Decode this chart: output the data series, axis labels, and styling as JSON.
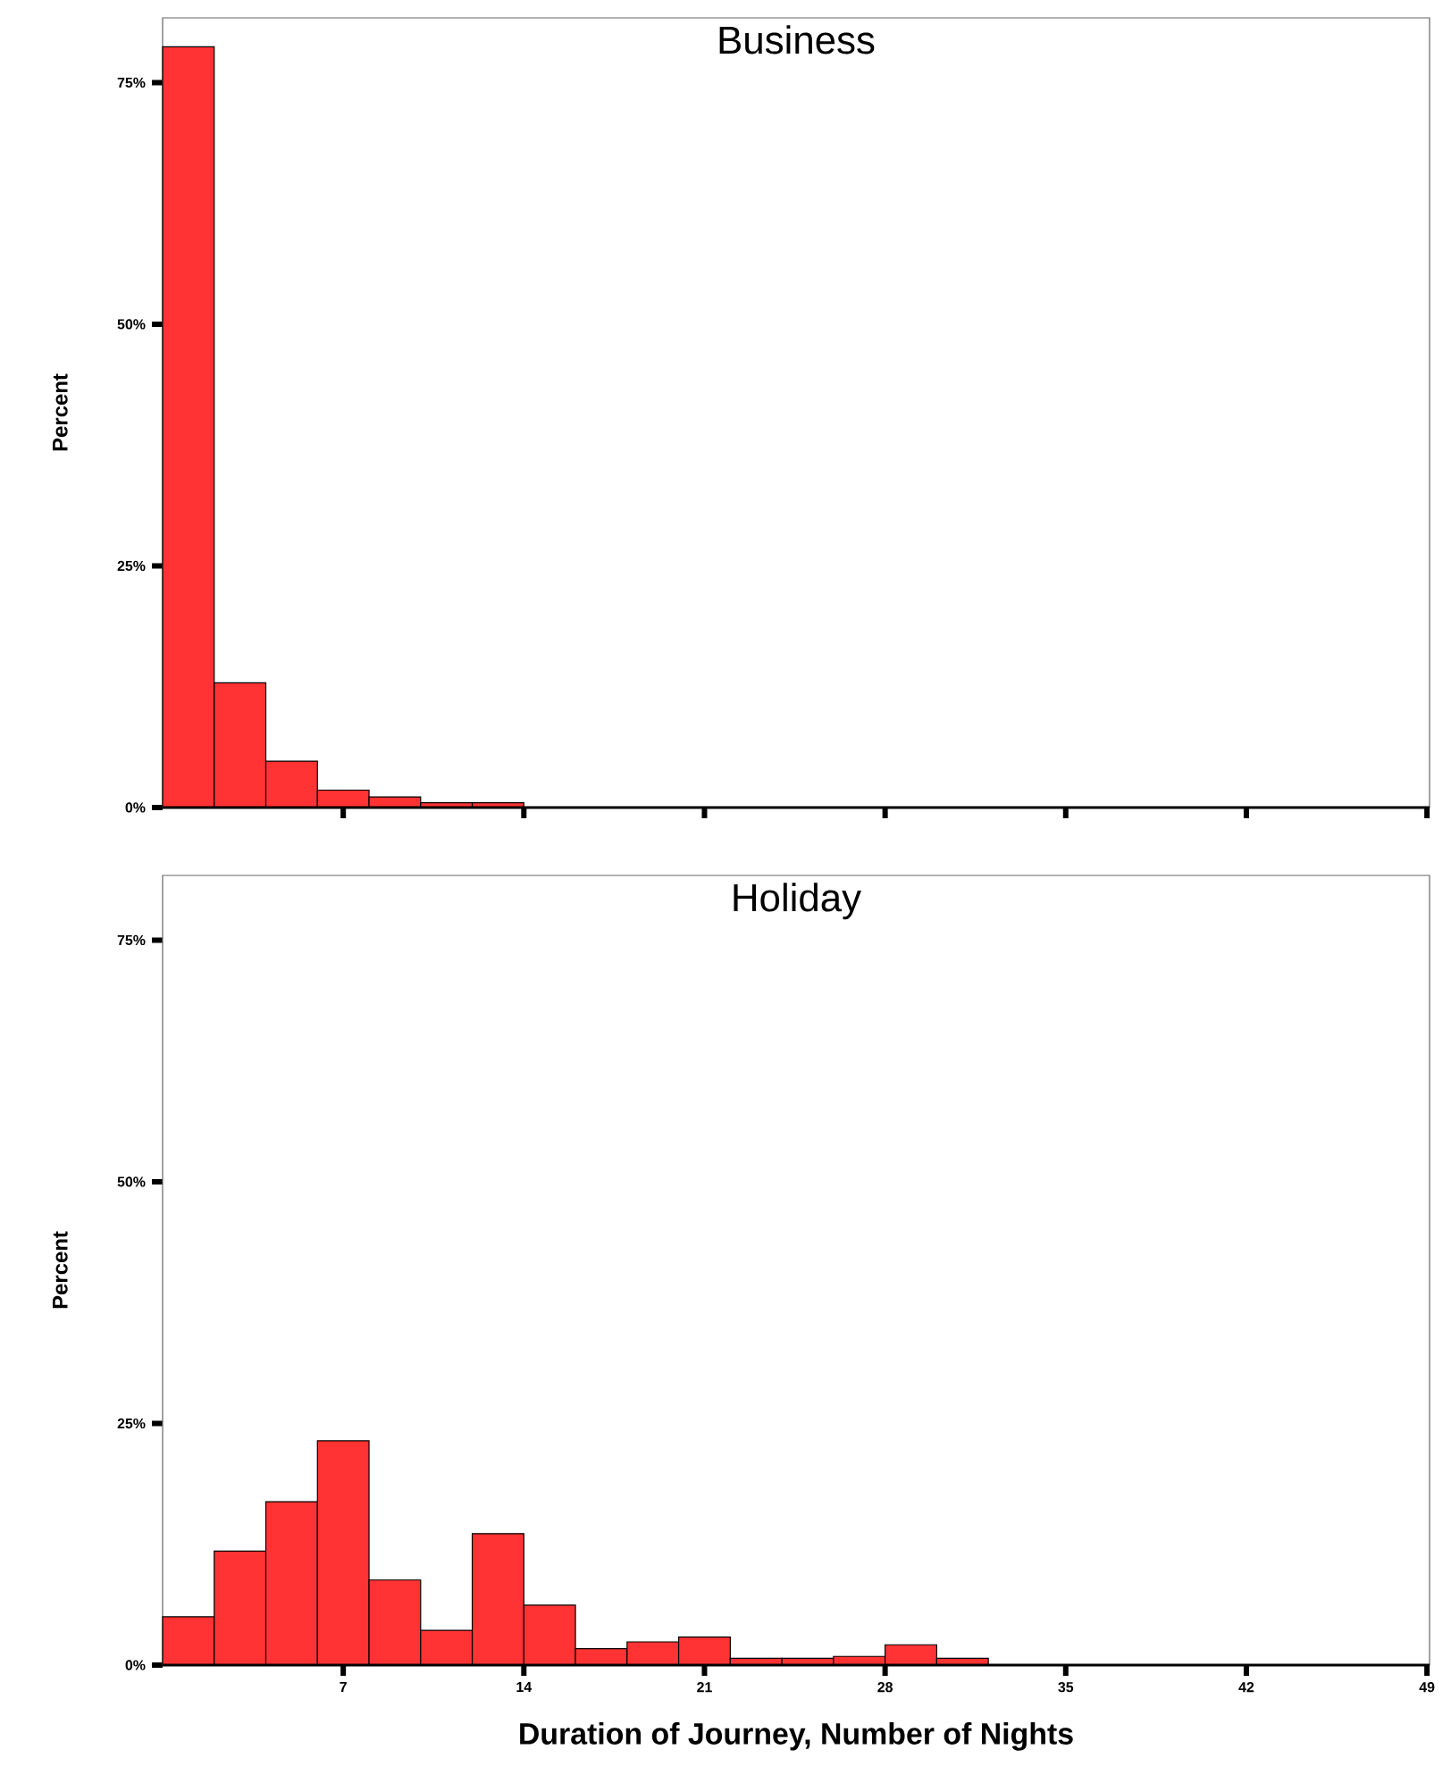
{
  "chart_data": [
    {
      "type": "histogram",
      "title": "Business",
      "ylabel": "Percent",
      "color": "#ff3333",
      "bins": [
        0,
        2,
        4,
        6,
        8,
        10,
        12,
        14,
        16,
        18,
        20,
        22,
        24,
        26,
        28,
        30,
        32,
        34,
        36,
        38,
        40,
        42,
        44,
        46,
        48
      ],
      "values": [
        78.7,
        12.9,
        4.8,
        1.8,
        1.1,
        0.5,
        0.5,
        0,
        0,
        0,
        0,
        0,
        0,
        0,
        0,
        0,
        0,
        0,
        0,
        0,
        0,
        0,
        0,
        0
      ],
      "xlim": [
        0,
        49.1
      ],
      "ylim": [
        0,
        81.7
      ],
      "xticks": [
        7,
        14,
        21,
        28,
        35,
        42,
        49
      ],
      "yticks": [
        {
          "value": 0,
          "label": "0%"
        },
        {
          "value": 25,
          "label": "25%"
        },
        {
          "value": 50,
          "label": "50%"
        },
        {
          "value": 75,
          "label": "75%"
        }
      ],
      "tick_labels": "y"
    },
    {
      "type": "histogram",
      "title": "Holiday",
      "ylabel": "Percent",
      "xlabel": "Duration of Journey, Number of Nights",
      "color": "#ff3333",
      "bins": [
        0,
        2,
        4,
        6,
        8,
        10,
        12,
        14,
        16,
        18,
        20,
        22,
        24,
        26,
        28,
        30,
        32,
        34,
        36,
        38,
        40,
        42,
        44,
        46,
        48
      ],
      "values": [
        5.0,
        11.8,
        16.9,
        23.2,
        8.8,
        3.6,
        13.6,
        6.2,
        1.7,
        2.4,
        2.9,
        0.7,
        0.7,
        0.9,
        2.1,
        0.7,
        0,
        0,
        0,
        0,
        0,
        0,
        0,
        0
      ],
      "xlim": [
        0,
        49.1
      ],
      "ylim": [
        0,
        81.7
      ],
      "xticks": [
        7,
        14,
        21,
        28,
        35,
        42,
        49
      ],
      "yticks": [
        {
          "value": 0,
          "label": "0%"
        },
        {
          "value": 25,
          "label": "25%"
        },
        {
          "value": 50,
          "label": "50%"
        },
        {
          "value": 75,
          "label": "75%"
        }
      ]
    }
  ]
}
